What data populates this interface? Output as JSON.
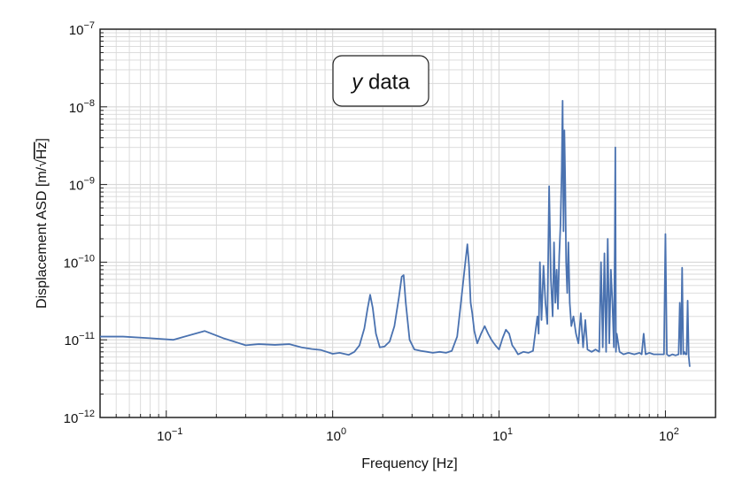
{
  "chart_data": {
    "type": "line",
    "title": "",
    "annotation": {
      "italic_part": "y",
      "rest": " data"
    },
    "xlabel": "Frequency [Hz]",
    "ylabel_prefix": "Displacement ASD [m/",
    "ylabel_radicand": "Hz",
    "ylabel_suffix": "]",
    "x_scale": "log",
    "y_scale": "log",
    "xlim": [
      0.04,
      200
    ],
    "ylim": [
      1e-12,
      1e-07
    ],
    "grid": true,
    "line_color": "#4a72b0",
    "x_ticks": [
      {
        "base": "10",
        "exp": "−1",
        "value": 0.1
      },
      {
        "base": "10",
        "exp": "0",
        "value": 1
      },
      {
        "base": "10",
        "exp": "1",
        "value": 10
      },
      {
        "base": "10",
        "exp": "2",
        "value": 100
      }
    ],
    "y_ticks": [
      {
        "base": "10",
        "exp": "−12",
        "value": 1e-12
      },
      {
        "base": "10",
        "exp": "−11",
        "value": 1e-11
      },
      {
        "base": "10",
        "exp": "−10",
        "value": 1e-10
      },
      {
        "base": "10",
        "exp": "−9",
        "value": 1e-09
      },
      {
        "base": "10",
        "exp": "−8",
        "value": 1e-08
      },
      {
        "base": "10",
        "exp": "−7",
        "value": 1e-07
      }
    ],
    "series": [
      {
        "x": [
          0.04,
          0.055,
          0.08,
          0.11,
          0.17,
          0.22,
          0.3,
          0.36,
          0.45,
          0.55,
          0.65,
          0.75,
          0.85,
          1.0,
          1.1,
          1.25,
          1.35,
          1.45,
          1.55,
          1.62,
          1.68,
          1.74,
          1.82,
          1.92,
          2.05,
          2.2,
          2.35,
          2.5,
          2.6,
          2.67,
          2.75,
          2.9,
          3.1,
          3.4,
          3.7,
          4.0,
          4.4,
          4.8,
          5.2,
          5.6,
          5.9,
          6.2,
          6.45,
          6.6,
          6.75,
          6.9,
          7.1,
          7.4,
          7.8,
          8.2,
          8.6,
          9.0,
          9.5,
          10.0,
          10.5,
          11.0,
          11.5,
          12.0,
          12.5,
          13.0,
          14.0,
          15.0,
          16.0,
          17.0,
          17.3,
          17.6,
          18.0,
          18.5,
          19.0,
          19.5,
          20.0,
          20.5,
          21.0,
          21.4,
          21.8,
          22.2,
          22.6,
          23.0,
          23.4,
          23.8,
          24.1,
          24.4,
          24.7,
          25.0,
          25.3,
          25.7,
          26.1,
          26.6,
          27.2,
          28.0,
          29.0,
          30.0,
          31.0,
          32.0,
          33.0,
          34.0,
          36.0,
          38.0,
          40.0,
          41.0,
          42.0,
          43.0,
          44.0,
          45.0,
          46.0,
          47.0,
          48.0,
          49.0,
          49.6,
          50.0,
          50.4,
          51.0,
          53.0,
          56.0,
          60.0,
          65.0,
          70.0,
          72.0,
          74.0,
          76.0,
          80.0,
          85.0,
          90.0,
          95.0,
          98.0,
          100.0,
          102.0,
          105.0,
          110.0,
          115.0,
          120.0,
          122.0,
          124.0,
          126.0,
          128.0,
          130.0,
          132.0,
          134.0,
          136.0,
          138.0,
          140.0
        ],
        "y": [
          1.1e-11,
          1.1e-11,
          1.05e-11,
          1e-11,
          1.3e-11,
          1.05e-11,
          8.5e-12,
          8.8e-12,
          8.6e-12,
          8.8e-12,
          8e-12,
          7.6e-12,
          7.4e-12,
          6.6e-12,
          6.8e-12,
          6.4e-12,
          7e-12,
          8.5e-12,
          1.4e-11,
          2.5e-11,
          3.8e-11,
          2.6e-11,
          1.2e-11,
          8e-12,
          8.2e-12,
          9.5e-12,
          1.5e-11,
          3.5e-11,
          6.5e-11,
          6.8e-11,
          3e-11,
          1e-11,
          7.5e-12,
          7.2e-12,
          7e-12,
          6.8e-12,
          7e-12,
          6.8e-12,
          7.2e-12,
          1.1e-11,
          3e-11,
          8e-11,
          1.7e-10,
          9e-11,
          3e-11,
          2.2e-11,
          1.3e-11,
          9e-12,
          1.2e-11,
          1.5e-11,
          1.2e-11,
          1e-11,
          8.5e-12,
          7.5e-12,
          1.05e-11,
          1.35e-11,
          1.2e-11,
          8.5e-12,
          7.5e-12,
          6.5e-12,
          7e-12,
          6.8e-12,
          7.2e-12,
          2e-11,
          1.2e-11,
          1e-10,
          1.8e-11,
          9e-11,
          3e-11,
          1.6e-11,
          9.5e-10,
          6e-11,
          2e-11,
          1.8e-10,
          3e-11,
          8e-11,
          2.5e-11,
          1.2e-10,
          3e-10,
          1.5e-09,
          1.2e-08,
          2.5e-10,
          5e-09,
          1e-09,
          1e-10,
          4e-11,
          1.8e-10,
          3e-11,
          1.5e-11,
          2e-11,
          1.2e-11,
          9e-12,
          2.2e-11,
          8e-12,
          1.8e-11,
          7.5e-12,
          7e-12,
          7.5e-12,
          7e-12,
          1e-10,
          8e-12,
          1.3e-10,
          7e-12,
          2e-10,
          9e-12,
          8e-11,
          3e-11,
          8e-12,
          1.5e-10,
          3e-09,
          7e-12,
          1.2e-11,
          7e-12,
          6.5e-12,
          6.8e-12,
          6.5e-12,
          6.8e-12,
          6.5e-12,
          1.2e-11,
          6.5e-12,
          6.8e-12,
          6.5e-12,
          6.5e-12,
          6.5e-12,
          6.5e-12,
          2.3e-10,
          6.5e-12,
          6.2e-12,
          6.5e-12,
          6.3e-12,
          6.5e-12,
          3e-11,
          6.5e-12,
          8.5e-11,
          6.5e-12,
          7e-12,
          6.5e-12,
          6.5e-12,
          3.2e-11,
          6.2e-12,
          4.5e-12
        ]
      }
    ]
  }
}
